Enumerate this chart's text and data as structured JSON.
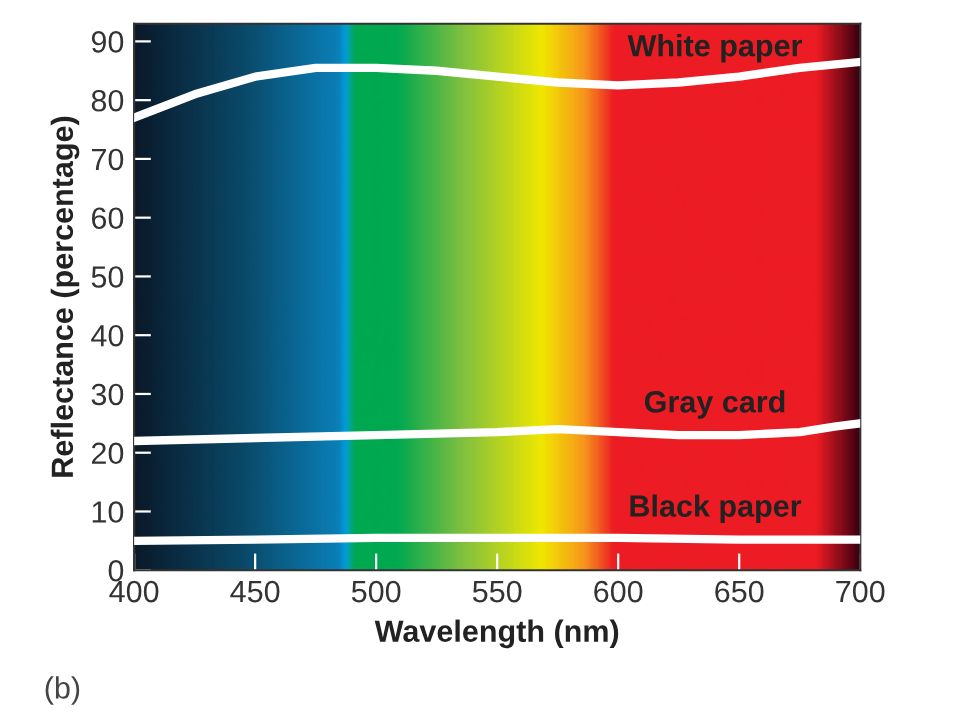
{
  "chart_data": {
    "type": "line",
    "xlabel": "Wavelength (nm)",
    "ylabel": "Reflectance (percentage)",
    "xlim": [
      400,
      700
    ],
    "xticks": [
      400,
      450,
      500,
      550,
      600,
      650,
      700
    ],
    "ylim": [
      0,
      93
    ],
    "yticks": [
      0,
      10,
      20,
      30,
      40,
      50,
      60,
      70,
      80,
      90
    ],
    "grid": false,
    "marker": "none",
    "line_style": "solid",
    "series": [
      {
        "name": "White paper",
        "color": "#ffffff",
        "x": [
          400,
          425,
          450,
          475,
          500,
          525,
          550,
          575,
          600,
          625,
          650,
          675,
          700
        ],
        "values": [
          77,
          81,
          84,
          85.5,
          85.5,
          85,
          84,
          83,
          82.5,
          83,
          84,
          85.5,
          86.5
        ]
      },
      {
        "name": "Gray card",
        "color": "#ffffff",
        "x": [
          400,
          450,
          500,
          550,
          575,
          600,
          625,
          650,
          675,
          690,
          700
        ],
        "values": [
          22,
          22.5,
          23,
          23.5,
          24,
          23.5,
          23,
          23,
          23.5,
          24.5,
          25
        ]
      },
      {
        "name": "Black paper",
        "color": "#ffffff",
        "x": [
          400,
          450,
          500,
          550,
          600,
          650,
          700
        ],
        "values": [
          5,
          5.2,
          5.5,
          5.5,
          5.5,
          5.2,
          5.2
        ]
      }
    ],
    "annotations": [
      "(b)"
    ]
  }
}
